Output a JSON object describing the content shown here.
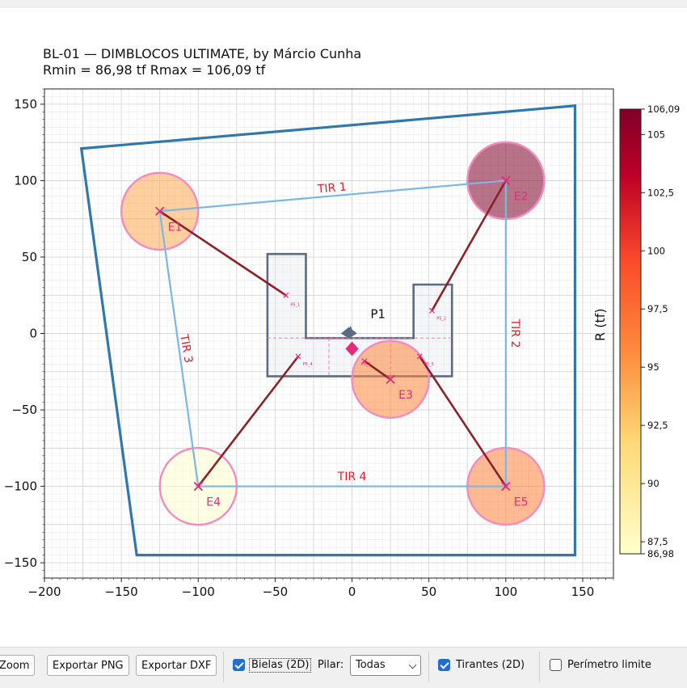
{
  "chart_data": {
    "type": "scatter",
    "title_line1": "BL-01 — DIMBLOCOS ULTIMATE, by Márcio Cunha",
    "title_line2": "Rmin = 86,98 tf   Rmax = 106,09 tf",
    "xlim": [
      -200,
      170
    ],
    "ylim": [
      -160,
      160
    ],
    "x_ticks": [
      -200,
      -150,
      -100,
      -50,
      0,
      50,
      100,
      150
    ],
    "y_ticks": [
      -150,
      -100,
      -50,
      0,
      50,
      100,
      150
    ],
    "x_tick_labels": [
      "−200",
      "−150",
      "−100",
      "−50",
      "0",
      "50",
      "100",
      "150"
    ],
    "y_tick_labels": [
      "−150",
      "−100",
      "−50",
      "0",
      "50",
      "100",
      "150"
    ],
    "grid": true,
    "block_outline": [
      [
        -176,
        121
      ],
      [
        145,
        149
      ],
      [
        145,
        -145
      ],
      [
        -140,
        -145
      ]
    ],
    "pillar_outline": [
      [
        -55,
        52
      ],
      [
        -30,
        52
      ],
      [
        -30,
        -3
      ],
      [
        40,
        -3
      ],
      [
        40,
        32
      ],
      [
        65,
        32
      ],
      [
        65,
        -28
      ],
      [
        -55,
        -28
      ]
    ],
    "pillar_dashes": [
      [
        [
          -55,
          -3
        ],
        [
          65,
          -3
        ]
      ],
      [
        [
          -15,
          -3
        ],
        [
          -15,
          -28
        ]
      ],
      [
        [
          25,
          -3
        ],
        [
          25,
          -28
        ]
      ]
    ],
    "pillar_label": "P1",
    "pillar_label_pos": [
      12,
      10
    ],
    "pillar_marker": [
      -2,
      0
    ],
    "resultant_marker": [
      0,
      -10
    ],
    "piles": [
      {
        "name": "E1",
        "x": -125,
        "y": 80,
        "reaction": 94.2
      },
      {
        "name": "E2",
        "x": 100,
        "y": 100,
        "reaction": 106.09
      },
      {
        "name": "E3",
        "x": 25,
        "y": -30,
        "reaction": 96.0
      },
      {
        "name": "E4",
        "x": -100,
        "y": -100,
        "reaction": 86.98
      },
      {
        "name": "E5",
        "x": 100,
        "y": -100,
        "reaction": 96.3
      }
    ],
    "pile_radius": 25,
    "ties": [
      {
        "name": "TIR 1",
        "from": [
          -125,
          80
        ],
        "to": [
          100,
          100
        ],
        "label_at": [
          -13,
          95
        ],
        "angle": -5
      },
      {
        "name": "TIR 2",
        "from": [
          100,
          100
        ],
        "to": [
          100,
          -100
        ],
        "label_at": [
          106,
          0
        ],
        "angle": 90
      },
      {
        "name": "TIR 3",
        "from": [
          -125,
          80
        ],
        "to": [
          -100,
          -100
        ],
        "label_at": [
          -108,
          -10
        ],
        "angle": 80
      },
      {
        "name": "TIR 4",
        "from": [
          -100,
          -100
        ],
        "to": [
          100,
          -100
        ],
        "label_at": [
          0,
          -94
        ],
        "angle": 0
      }
    ],
    "struts": [
      {
        "label": "P5_1",
        "pile": [
          -125,
          80
        ],
        "node": [
          -43,
          25
        ],
        "label_at": [
          -40,
          18
        ]
      },
      {
        "label": "P5_2",
        "pile": [
          100,
          100
        ],
        "node": [
          52,
          15
        ],
        "label_at": [
          55,
          9
        ]
      },
      {
        "label": "P5_4",
        "pile": [
          -100,
          -100
        ],
        "node": [
          -35,
          -15
        ],
        "label_at": [
          -32,
          -21
        ]
      },
      {
        "label": "P5_3",
        "pile": [
          25,
          -30
        ],
        "node": [
          8,
          -18
        ],
        "label_at": [
          6,
          -21
        ]
      },
      {
        "label": "P5_5",
        "pile": [
          100,
          -100
        ],
        "node": [
          44,
          -15
        ],
        "label_at": [
          47,
          -21
        ]
      }
    ],
    "colorbar": {
      "label": "R (tf)",
      "min": 86.98,
      "max": 106.09,
      "ticks": [
        86.98,
        87.5,
        90,
        92.5,
        95,
        97.5,
        100,
        102.5,
        105,
        106.09
      ],
      "tick_labels": [
        "86,98",
        "87,5",
        "90",
        "92,5",
        "95",
        "97,5",
        "100",
        "102,5",
        "105",
        "106,09"
      ]
    },
    "colors": {
      "block": "#2f77ad",
      "pillar": "#5b6b80",
      "tie": "#7ab7e6",
      "tie_text": "#e0202a",
      "strut": "#8b2228",
      "pile_edge": "#f28bc0",
      "pile_center": "#e8287a"
    }
  },
  "toolbar": {
    "zoom_label": "Zoom",
    "export_png_label": "Exportar PNG",
    "export_dxf_label": "Exportar DXF",
    "bielas_label": "Bielas (2D)",
    "bielas_checked": true,
    "pilar_label": "Pilar:",
    "pilar_value": "Todas",
    "tirantes_label": "Tirantes (2D)",
    "tirantes_checked": true,
    "perimetro_label": "Perímetro limite",
    "perimetro_checked": false
  }
}
